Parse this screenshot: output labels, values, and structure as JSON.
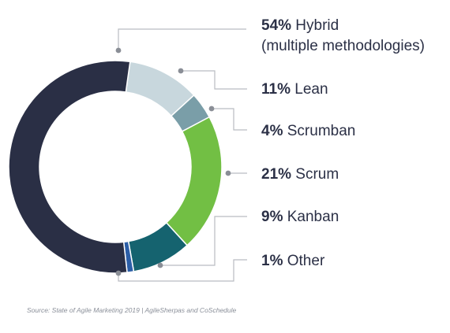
{
  "chart_data": {
    "type": "pie",
    "style": "donut",
    "title": "",
    "slices": [
      {
        "label": "Hybrid",
        "label_line2": "(multiple methodologies)",
        "pct_label": "54%",
        "value": 54,
        "color": "#2a2f45"
      },
      {
        "label": "Lean",
        "pct_label": "11%",
        "value": 11,
        "color": "#c8d7dd"
      },
      {
        "label": "Scrumban",
        "pct_label": "4%",
        "value": 4,
        "color": "#7a9ea8"
      },
      {
        "label": "Scrum",
        "pct_label": "21%",
        "value": 21,
        "color": "#72bf44"
      },
      {
        "label": "Kanban",
        "pct_label": "9%",
        "value": 9,
        "color": "#15636f"
      },
      {
        "label": "Other",
        "pct_label": "1%",
        "value": 1,
        "color": "#2b5ea7"
      }
    ],
    "legend_placement": "right",
    "leader_color": "#b9bcc2",
    "dot_color": "#8a8e96"
  },
  "source": "Source: State of Agile Marketing 2019 | AgileSherpas and CoSchedule"
}
